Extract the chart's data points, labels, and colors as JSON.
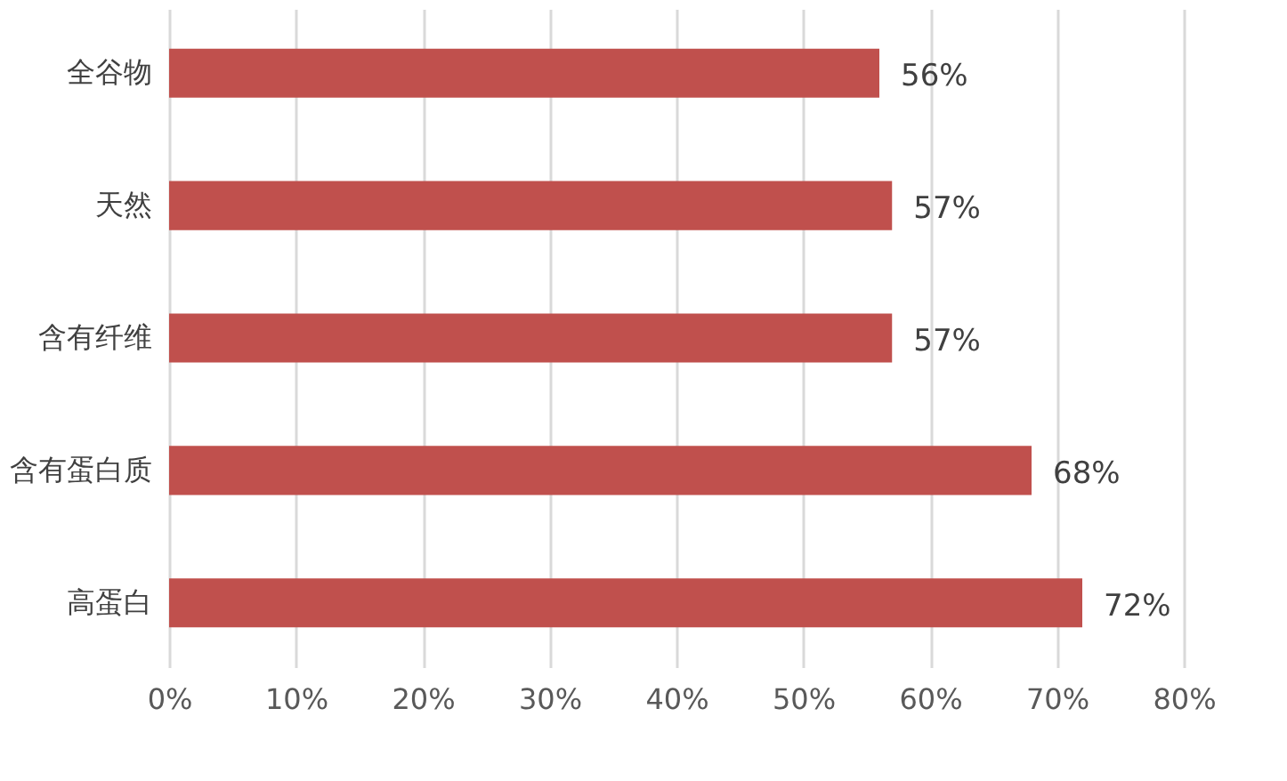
{
  "chart_data": {
    "type": "bar",
    "orientation": "horizontal",
    "categories": [
      "全谷物",
      "天然",
      "含有纤维",
      "含有蛋白质",
      "高蛋白"
    ],
    "values": [
      56,
      57,
      57,
      68,
      72
    ],
    "value_labels": [
      "56%",
      "57%",
      "57%",
      "68%",
      "72%"
    ],
    "color": "#c0504d",
    "xlim": [
      0,
      80
    ],
    "xticks": [
      {
        "value": 0,
        "label": "0%"
      },
      {
        "value": 10,
        "label": "10%"
      },
      {
        "value": 20,
        "label": "20%"
      },
      {
        "value": 30,
        "label": "30%"
      },
      {
        "value": 40,
        "label": "40%"
      },
      {
        "value": 50,
        "label": "50%"
      },
      {
        "value": 60,
        "label": "60%"
      },
      {
        "value": 70,
        "label": "70%"
      },
      {
        "value": 80,
        "label": "80%"
      }
    ],
    "grid": "x"
  }
}
